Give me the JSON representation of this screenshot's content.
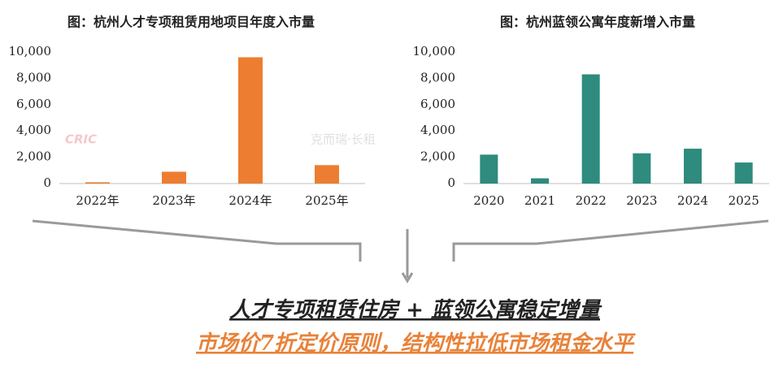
{
  "chart_data": [
    {
      "type": "bar",
      "title": "图：杭州人才专项租赁用地项目年度入市量",
      "categories": [
        "2022年",
        "2023年",
        "2024年",
        "2025年"
      ],
      "values": [
        100,
        900,
        9600,
        1400
      ],
      "color": "#ed7d31",
      "ylim": [
        0,
        10000
      ],
      "yticks": [
        0,
        {
          "value": 2000,
          "label": "2,000"
        },
        {
          "value": 4000,
          "label": "4,000"
        },
        {
          "value": 6000,
          "label": "6,000"
        },
        {
          "value": 8000,
          "label": "8,000"
        },
        {
          "value": 10000,
          "label": "10,000"
        }
      ]
    },
    {
      "type": "bar",
      "title": "图：杭州蓝领公寓年度新增入市量",
      "categories": [
        "2020",
        "2021",
        "2022",
        "2023",
        "2024",
        "2025"
      ],
      "values": [
        2200,
        400,
        8300,
        2300,
        2650,
        1600
      ],
      "color": "#2e8b7d",
      "ylim": [
        0,
        10000
      ],
      "yticks": [
        0,
        {
          "value": 2000,
          "label": "2,000"
        },
        {
          "value": 4000,
          "label": "4,000"
        },
        {
          "value": 6000,
          "label": "6,000"
        },
        {
          "value": 8000,
          "label": "8,000"
        },
        {
          "value": 10000,
          "label": "10,000"
        }
      ]
    }
  ],
  "watermark": {
    "logo": "CRIC",
    "brand": "克而瑞·长租"
  },
  "conclusion": {
    "line1": "人才专项租赁住房 + 蓝领公寓稳定增量",
    "line2": "市场价7折定价原则，结构性拉低市场租金水平"
  }
}
